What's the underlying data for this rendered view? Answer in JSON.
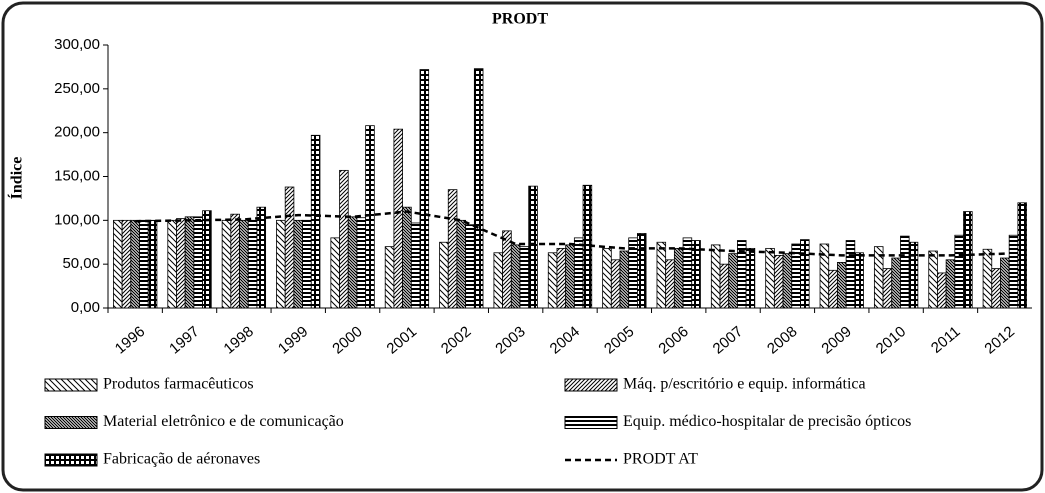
{
  "chart_data": {
    "type": "bar",
    "title": "PRODT",
    "y_label": "Índice",
    "categories": [
      "1996",
      "1997",
      "1998",
      "1999",
      "2000",
      "2001",
      "2002",
      "2003",
      "2004",
      "2005",
      "2006",
      "2007",
      "2008",
      "2009",
      "2010",
      "2011",
      "2012"
    ],
    "series": [
      {
        "name": "Produtos farmacêuticos",
        "color": "#000000",
        "values": [
          100,
          100,
          100,
          100,
          80,
          70,
          75,
          63,
          63,
          68,
          75,
          72,
          68,
          73,
          70,
          65,
          67
        ]
      },
      {
        "name": "Máq. p/escritório e equip. informática",
        "color": "#000000",
        "values": [
          100,
          102,
          107,
          138,
          157,
          204,
          135,
          88,
          68,
          55,
          55,
          50,
          60,
          43,
          45,
          40,
          45
        ]
      },
      {
        "name": "Material eletrônico e de comunicação",
        "color": "#000000",
        "values": [
          100,
          104,
          100,
          100,
          104,
          115,
          100,
          72,
          72,
          65,
          68,
          62,
          62,
          52,
          57,
          55,
          57
        ]
      },
      {
        "name": "Equip. médico-hospitalar de  precisão ópticos",
        "color": "#000000",
        "values": [
          100,
          104,
          100,
          100,
          103,
          97,
          95,
          70,
          80,
          80,
          80,
          77,
          73,
          77,
          82,
          83,
          83
        ]
      },
      {
        "name": "Fabricação de aéronaves",
        "color": "#000000",
        "values": [
          100,
          111,
          115,
          197,
          208,
          272,
          273,
          139,
          140,
          85,
          77,
          68,
          78,
          63,
          75,
          110,
          120
        ]
      },
      {
        "name": "PRODT AT",
        "color": "#000000",
        "type": "line",
        "dashed": true,
        "values": [
          99,
          100,
          101,
          106,
          104,
          110,
          100,
          73,
          73,
          68,
          68,
          65,
          63,
          60,
          60,
          60,
          62
        ]
      }
    ],
    "ylim": [
      0,
      300
    ],
    "yticks": [
      {
        "value": 0,
        "label": "0,00"
      },
      {
        "value": 50,
        "label": "50,00"
      },
      {
        "value": 100,
        "label": "100,00"
      },
      {
        "value": 150,
        "label": "150,00"
      },
      {
        "value": 200,
        "label": "200,00"
      },
      {
        "value": 250,
        "label": "250,00"
      },
      {
        "value": 300,
        "label": "300,00"
      }
    ],
    "grid": false
  }
}
